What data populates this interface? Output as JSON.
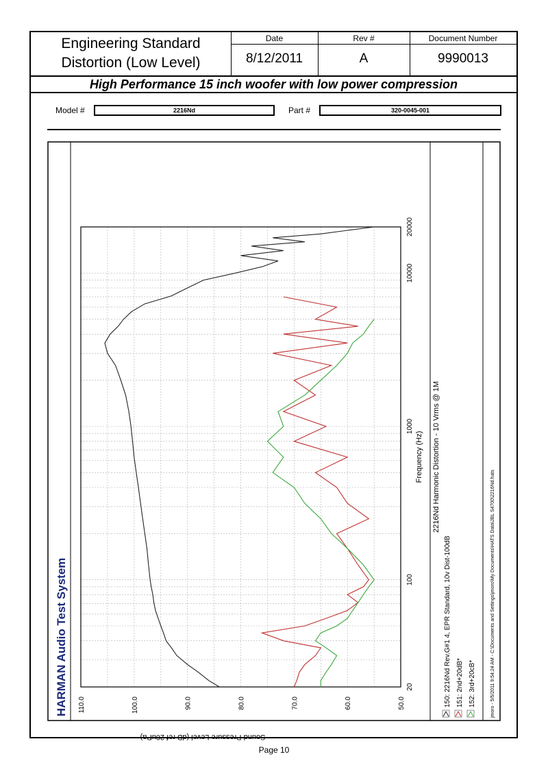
{
  "header": {
    "title_line1": "Engineering Standard",
    "title_line2": "Distortion (Low Level)",
    "date_label": "Date",
    "date_value": "8/12/2011",
    "rev_label": "Rev #",
    "rev_value": "A",
    "docnum_label": "Document Number",
    "docnum_value": "9990013",
    "subtitle": "High Performance 15 inch woofer with low power compression"
  },
  "model": {
    "label": "Model #",
    "value": "2216Nd"
  },
  "part": {
    "label": "Part #",
    "value": "320-0045-001"
  },
  "harman_title": "HARMAN Audio Test System",
  "footer": {
    "page": "Page 10"
  },
  "chart_data": {
    "type": "line",
    "xlabel": "Frequency (Hz)",
    "ylabel": "Sound Pressure Level (dB ref 20uPa)",
    "caption": "2216Nd Harmonic Distortion - 10 Vrms @ 1M",
    "x_scale": "log",
    "xlim": [
      20,
      20000
    ],
    "ylim": [
      50,
      110
    ],
    "x_ticks": [
      "20",
      "100",
      "1000",
      "10000",
      "20000"
    ],
    "y_ticks": [
      "50.0",
      "60.0",
      "70.0",
      "80.0",
      "90.0",
      "100.0",
      "110.0"
    ],
    "grid": true,
    "legend_position": "bottom",
    "legend": [
      "150: 2216Nd Rev.G#1 4, EPR Standard, 10v Dist-100dB",
      "151: 2nd+20dB*",
      "152: 3rd+20cB*"
    ],
    "file_note": "jmoro - 5/5/2011 9:54:24 AM - C:\\Documents and Settings\\jmoro\\My Documents\\HATS Data\\JBL S4700\\2216Nd.hats",
    "series": [
      {
        "name": "150: 2216Nd Rev.G#1 4, EPR Standard, 10v Dist-100dB",
        "color": "#222222",
        "x": [
          20,
          22,
          25,
          28,
          32,
          36,
          40,
          45,
          50,
          56,
          63,
          71,
          80,
          90,
          100,
          125,
          160,
          200,
          250,
          315,
          400,
          500,
          630,
          800,
          1000,
          1250,
          1600,
          2000,
          2500,
          3000,
          3500,
          4000,
          4500,
          5000,
          5600,
          6300,
          7100,
          8000,
          9000,
          10000,
          11000,
          12000,
          13000,
          14000,
          15000,
          16000,
          17000,
          18000,
          19000,
          20000
        ],
        "y": [
          84,
          86,
          88,
          90,
          92,
          93,
          94,
          94.5,
          95,
          95.5,
          96,
          96.3,
          96.5,
          96.8,
          97,
          97.3,
          97.6,
          98,
          98.4,
          98.8,
          99.2,
          99.6,
          100,
          100.3,
          100.6,
          101,
          101.6,
          102.5,
          103.5,
          105,
          105.5,
          104.5,
          103,
          102,
          100.5,
          98,
          93,
          90,
          87,
          81,
          76,
          73,
          80,
          72,
          78,
          68,
          74,
          65,
          60,
          55
        ]
      },
      {
        "name": "151: 2nd+20dB*",
        "color": "#c03030",
        "x": [
          20,
          22,
          25,
          28,
          32,
          36,
          40,
          45,
          50,
          56,
          63,
          71,
          80,
          90,
          100,
          125,
          160,
          200,
          250,
          315,
          400,
          500,
          630,
          800,
          1000,
          1250,
          1600,
          2000,
          2500,
          3000,
          3500,
          4000,
          4500,
          5000,
          6000,
          7000
        ],
        "y": [
          70,
          69.5,
          69,
          68,
          66,
          65,
          72,
          76,
          68,
          64,
          60,
          58,
          60,
          57,
          56,
          58,
          60,
          62,
          56,
          60,
          62,
          66,
          60,
          70,
          64,
          72,
          66,
          70,
          63,
          74,
          60,
          72,
          58,
          66,
          62,
          72
        ]
      },
      {
        "name": "152: 3rd+20cB*",
        "color": "#3aa83a",
        "x": [
          20,
          22,
          25,
          28,
          32,
          36,
          40,
          45,
          50,
          56,
          63,
          71,
          80,
          90,
          100,
          125,
          160,
          200,
          250,
          315,
          400,
          500,
          630,
          800,
          1000,
          1250,
          1600,
          2000,
          2500,
          3000,
          3500,
          4000,
          4500,
          5000
        ],
        "y": [
          65,
          65,
          64,
          63,
          62,
          64,
          66,
          65,
          62,
          60,
          59,
          58,
          57,
          56,
          55,
          57,
          60,
          63,
          65,
          68,
          70,
          74,
          72,
          75,
          72,
          73,
          68,
          65,
          62,
          60,
          59,
          57,
          56,
          55
        ]
      }
    ]
  }
}
